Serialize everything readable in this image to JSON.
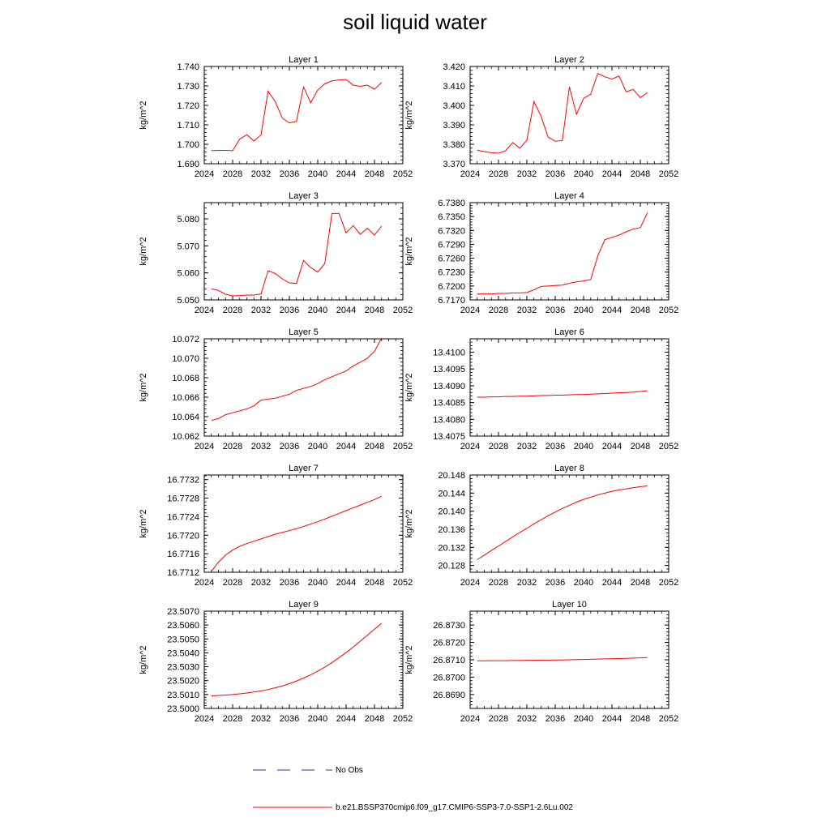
{
  "title": "soil liquid water",
  "colors": {
    "model": "#ff0000",
    "obs": "#3333aa",
    "axis": "#000000"
  },
  "legend": [
    {
      "label": "No Obs",
      "style": "dashed",
      "color": "#3333aa"
    },
    {
      "label": "b.e21.BSSP370cmip6.f09_g17.CMIP6-SSP3-7.0-SSP1-2.6Lu.002",
      "style": "solid",
      "color": "#ff0000"
    }
  ],
  "chart_data": [
    {
      "type": "line",
      "title": "Layer 1",
      "ylabel": "kg/m^2",
      "xlim": [
        2024,
        2052
      ],
      "xticks": [
        "2024",
        "2028",
        "2032",
        "2036",
        "2040",
        "2044",
        "2048",
        "2052"
      ],
      "ylim": [
        1.69,
        1.74
      ],
      "yticks": [
        "1.690",
        "1.700",
        "1.710",
        "1.720",
        "1.730",
        "1.740"
      ],
      "x": [
        2025,
        2026,
        2027,
        2028,
        2029,
        2030,
        2031,
        2032,
        2033,
        2034,
        2035,
        2036,
        2037,
        2038,
        2039,
        2040,
        2041,
        2042,
        2043,
        2044,
        2045,
        2046,
        2047,
        2048,
        2049
      ],
      "series": [
        {
          "values": [
            1.6967,
            1.6969,
            1.6969,
            1.6967,
            1.7027,
            1.7049,
            1.7017,
            1.7048,
            1.7273,
            1.722,
            1.7135,
            1.711,
            1.7118,
            1.7295,
            1.7213,
            1.7279,
            1.7311,
            1.7326,
            1.733,
            1.7333,
            1.7304,
            1.7298,
            1.7304,
            1.7283,
            1.7318
          ]
        }
      ]
    },
    {
      "type": "line",
      "title": "Layer 2",
      "ylabel": "kg/m^2",
      "xlim": [
        2024,
        2052
      ],
      "xticks": [
        "2024",
        "2028",
        "2032",
        "2036",
        "2040",
        "2044",
        "2048",
        "2052"
      ],
      "ylim": [
        3.37,
        3.42
      ],
      "yticks": [
        "3.370",
        "3.380",
        "3.390",
        "3.400",
        "3.410",
        "3.420"
      ],
      "x": [
        2025,
        2026,
        2027,
        2028,
        2029,
        2030,
        2031,
        2032,
        2033,
        2034,
        2035,
        2036,
        2037,
        2038,
        2039,
        2040,
        2041,
        2042,
        2043,
        2044,
        2045,
        2046,
        2047,
        2048,
        2049
      ],
      "series": [
        {
          "values": [
            3.377,
            3.3762,
            3.3757,
            3.3754,
            3.3767,
            3.3809,
            3.378,
            3.3821,
            3.402,
            3.3944,
            3.3837,
            3.3816,
            3.3819,
            3.4095,
            3.3954,
            3.4036,
            3.4057,
            3.4164,
            3.4147,
            3.4135,
            3.4151,
            3.407,
            3.4082,
            3.404,
            3.4065
          ]
        }
      ]
    },
    {
      "type": "line",
      "title": "Layer 3",
      "ylabel": "kg/m^2",
      "xlim": [
        2024,
        2052
      ],
      "xticks": [
        "2024",
        "2028",
        "2032",
        "2036",
        "2040",
        "2044",
        "2048",
        "2052"
      ],
      "ylim": [
        5.05,
        5.086
      ],
      "yticks": [
        "5.050",
        "5.060",
        "5.070",
        "5.080"
      ],
      "x": [
        2025,
        2026,
        2027,
        2028,
        2029,
        2030,
        2031,
        2032,
        2033,
        2034,
        2035,
        2036,
        2037,
        2038,
        2039,
        2040,
        2041,
        2042,
        2043,
        2044,
        2045,
        2046,
        2047,
        2048,
        2049
      ],
      "series": [
        {
          "values": [
            5.0541,
            5.0535,
            5.0521,
            5.0515,
            5.0516,
            5.0518,
            5.0518,
            5.0522,
            5.0608,
            5.0598,
            5.0578,
            5.0563,
            5.0561,
            5.0646,
            5.062,
            5.0603,
            5.0635,
            5.082,
            5.082,
            5.0748,
            5.0775,
            5.0743,
            5.0765,
            5.074,
            5.0773
          ]
        }
      ]
    },
    {
      "type": "line",
      "title": "Layer 4",
      "ylabel": "kg/m^2",
      "xlim": [
        2024,
        2052
      ],
      "xticks": [
        "2024",
        "2028",
        "2032",
        "2036",
        "2040",
        "2044",
        "2048",
        "2052"
      ],
      "ylim": [
        6.717,
        6.738
      ],
      "yticks": [
        "6.7170",
        "6.7200",
        "6.7230",
        "6.7260",
        "6.7290",
        "6.7320",
        "6.7350",
        "6.7380"
      ],
      "x": [
        2025,
        2026,
        2027,
        2028,
        2029,
        2030,
        2031,
        2032,
        2033,
        2034,
        2035,
        2036,
        2037,
        2038,
        2039,
        2040,
        2041,
        2042,
        2043,
        2044,
        2045,
        2046,
        2047,
        2048,
        2049
      ],
      "series": [
        {
          "values": [
            6.7183,
            6.7183,
            6.7183,
            6.7184,
            6.7184,
            6.7185,
            6.7185,
            6.7186,
            6.7192,
            6.7199,
            6.72,
            6.7201,
            6.7202,
            6.7206,
            6.7209,
            6.7211,
            6.7214,
            6.7265,
            6.73,
            6.7305,
            6.731,
            6.7317,
            6.7323,
            6.7326,
            6.7358
          ]
        }
      ]
    },
    {
      "type": "line",
      "title": "Layer 5",
      "ylabel": "kg/m^2",
      "xlim": [
        2024,
        2052
      ],
      "xticks": [
        "2024",
        "2028",
        "2032",
        "2036",
        "2040",
        "2044",
        "2048",
        "2052"
      ],
      "ylim": [
        10.062,
        10.072
      ],
      "yticks": [
        "10.062",
        "10.064",
        "10.066",
        "10.068",
        "10.070",
        "10.072"
      ],
      "x": [
        2025,
        2026,
        2027,
        2028,
        2029,
        2030,
        2031,
        2032,
        2033,
        2034,
        2035,
        2036,
        2037,
        2038,
        2039,
        2040,
        2041,
        2042,
        2043,
        2044,
        2045,
        2046,
        2047,
        2048,
        2049
      ],
      "series": [
        {
          "values": [
            10.0636,
            10.0638,
            10.0642,
            10.0644,
            10.0646,
            10.0648,
            10.0651,
            10.0657,
            10.0658,
            10.0659,
            10.0661,
            10.0663,
            10.0667,
            10.0669,
            10.0671,
            10.0674,
            10.0678,
            10.0681,
            10.0684,
            10.0687,
            10.0692,
            10.0696,
            10.07,
            10.0707,
            10.0721
          ]
        }
      ]
    },
    {
      "type": "line",
      "title": "Layer 6",
      "ylabel": "kg/m^2",
      "xlim": [
        2024,
        2052
      ],
      "xticks": [
        "2024",
        "2028",
        "2032",
        "2036",
        "2040",
        "2044",
        "2048",
        "2052"
      ],
      "ylim": [
        13.4075,
        13.4104
      ],
      "yticks": [
        "13.4075",
        "13.4080",
        "13.4085",
        "13.4090",
        "13.4095",
        "13.4100"
      ],
      "x": [
        2025,
        2026,
        2027,
        2028,
        2029,
        2030,
        2031,
        2032,
        2033,
        2034,
        2035,
        2036,
        2037,
        2038,
        2039,
        2040,
        2041,
        2042,
        2043,
        2044,
        2045,
        2046,
        2047,
        2048,
        2049
      ],
      "series": [
        {
          "values": [
            13.40866,
            13.40866,
            13.40867,
            13.40867,
            13.40868,
            13.40868,
            13.40869,
            13.40869,
            13.4087,
            13.40871,
            13.40871,
            13.40872,
            13.40872,
            13.40873,
            13.40874,
            13.40874,
            13.40875,
            13.40876,
            13.40877,
            13.40878,
            13.40879,
            13.4088,
            13.40881,
            13.40883,
            13.40885
          ]
        }
      ]
    },
    {
      "type": "line",
      "title": "Layer 7",
      "ylabel": "kg/m^2",
      "xlim": [
        2024,
        2052
      ],
      "xticks": [
        "2024",
        "2028",
        "2032",
        "2036",
        "2040",
        "2044",
        "2048",
        "2052"
      ],
      "ylim": [
        16.7712,
        16.7733
      ],
      "yticks": [
        "16.7712",
        "16.7716",
        "16.7720",
        "16.7724",
        "16.7728",
        "16.7732"
      ],
      "x": [
        2025,
        2026,
        2027,
        2028,
        2029,
        2030,
        2031,
        2032,
        2033,
        2034,
        2035,
        2036,
        2037,
        2038,
        2039,
        2040,
        2041,
        2042,
        2043,
        2044,
        2045,
        2046,
        2047,
        2048,
        2049
      ],
      "series": [
        {
          "values": [
            16.77122,
            16.77142,
            16.77157,
            16.77168,
            16.77176,
            16.77182,
            16.77187,
            16.77192,
            16.77197,
            16.77202,
            16.77206,
            16.7721,
            16.77214,
            16.77219,
            16.77224,
            16.77229,
            16.77235,
            16.77241,
            16.77247,
            16.77253,
            16.77259,
            16.77265,
            16.77271,
            16.77277,
            16.77284
          ]
        }
      ]
    },
    {
      "type": "line",
      "title": "Layer 8",
      "ylabel": "kg/m^2",
      "xlim": [
        2024,
        2052
      ],
      "xticks": [
        "2024",
        "2028",
        "2032",
        "2036",
        "2040",
        "2044",
        "2048",
        "2052"
      ],
      "ylim": [
        20.1265,
        20.148
      ],
      "yticks": [
        "20.128",
        "20.132",
        "20.136",
        "20.140",
        "20.144",
        "20.148"
      ],
      "x": [
        2025,
        2026,
        2027,
        2028,
        2029,
        2030,
        2031,
        2032,
        2033,
        2034,
        2035,
        2036,
        2037,
        2038,
        2039,
        2040,
        2041,
        2042,
        2043,
        2044,
        2045,
        2046,
        2047,
        2048,
        2049
      ],
      "series": [
        {
          "values": [
            20.1293,
            20.1303,
            20.1313,
            20.1323,
            20.1333,
            20.1343,
            20.1353,
            20.1362,
            20.1372,
            20.1381,
            20.139,
            20.1398,
            20.1406,
            20.1413,
            20.142,
            20.1426,
            20.1431,
            20.1436,
            20.144,
            20.1444,
            20.1447,
            20.1449,
            20.1452,
            20.1454,
            20.1456
          ]
        }
      ]
    },
    {
      "type": "line",
      "title": "Layer 9",
      "ylabel": "kg/m^2",
      "xlim": [
        2024,
        2052
      ],
      "xticks": [
        "2024",
        "2028",
        "2032",
        "2036",
        "2040",
        "2044",
        "2048",
        "2052"
      ],
      "ylim": [
        23.5,
        23.507
      ],
      "yticks": [
        "23.5000",
        "23.5010",
        "23.5020",
        "23.5030",
        "23.5040",
        "23.5050",
        "23.5060",
        "23.5070"
      ],
      "x": [
        2025,
        2026,
        2027,
        2028,
        2029,
        2030,
        2031,
        2032,
        2033,
        2034,
        2035,
        2036,
        2037,
        2038,
        2039,
        2040,
        2041,
        2042,
        2043,
        2044,
        2045,
        2046,
        2047,
        2048,
        2049
      ],
      "series": [
        {
          "values": [
            23.5009,
            23.50093,
            23.50096,
            23.501,
            23.50105,
            23.50111,
            23.50118,
            23.50126,
            23.50136,
            23.50148,
            23.50162,
            23.50178,
            23.50197,
            23.50218,
            23.50242,
            23.50268,
            23.50297,
            23.5033,
            23.50365,
            23.50402,
            23.50442,
            23.50484,
            23.50527,
            23.5057,
            23.50613
          ]
        }
      ]
    },
    {
      "type": "line",
      "title": "Layer 10",
      "ylabel": "kg/m^2",
      "xlim": [
        2024,
        2052
      ],
      "xticks": [
        "2024",
        "2028",
        "2032",
        "2036",
        "2040",
        "2044",
        "2048",
        "2052"
      ],
      "ylim": [
        26.8682,
        26.8738
      ],
      "yticks": [
        "26.8690",
        "26.8700",
        "26.8710",
        "26.8720",
        "26.8730"
      ],
      "x": [
        2025,
        2026,
        2027,
        2028,
        2029,
        2030,
        2031,
        2032,
        2033,
        2034,
        2035,
        2036,
        2037,
        2038,
        2039,
        2040,
        2041,
        2042,
        2043,
        2044,
        2045,
        2046,
        2047,
        2048,
        2049
      ],
      "series": [
        {
          "values": [
            26.87094,
            26.87094,
            26.87095,
            26.87095,
            26.87095,
            26.87096,
            26.87096,
            26.87097,
            26.87097,
            26.87098,
            26.87098,
            26.87099,
            26.87099,
            26.871,
            26.87101,
            26.87102,
            26.87103,
            26.87104,
            26.87105,
            26.87106,
            26.87107,
            26.87108,
            26.8711,
            26.87111,
            26.87113
          ]
        }
      ]
    }
  ]
}
